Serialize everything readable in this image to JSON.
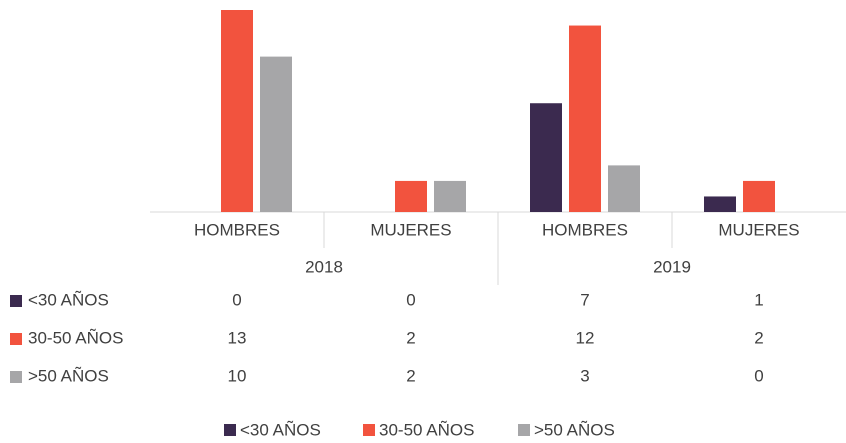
{
  "chart_data": {
    "type": "bar",
    "groups": [
      "2018",
      "2019"
    ],
    "categories": [
      "HOMBRES",
      "MUJERES",
      "HOMBRES",
      "MUJERES"
    ],
    "series": [
      {
        "name": "<30 AÑOS",
        "color": "#3b2a4f",
        "values": [
          0,
          0,
          7,
          1
        ]
      },
      {
        "name": "30-50 AÑOS",
        "color": "#f2533e",
        "values": [
          13,
          2,
          12,
          2
        ]
      },
      {
        "name": ">50 AÑOS",
        "color": "#a6a6a8",
        "values": [
          10,
          2,
          3,
          0
        ]
      }
    ],
    "ylim": [
      0,
      13
    ],
    "legend": "bottom",
    "data_table": true
  }
}
